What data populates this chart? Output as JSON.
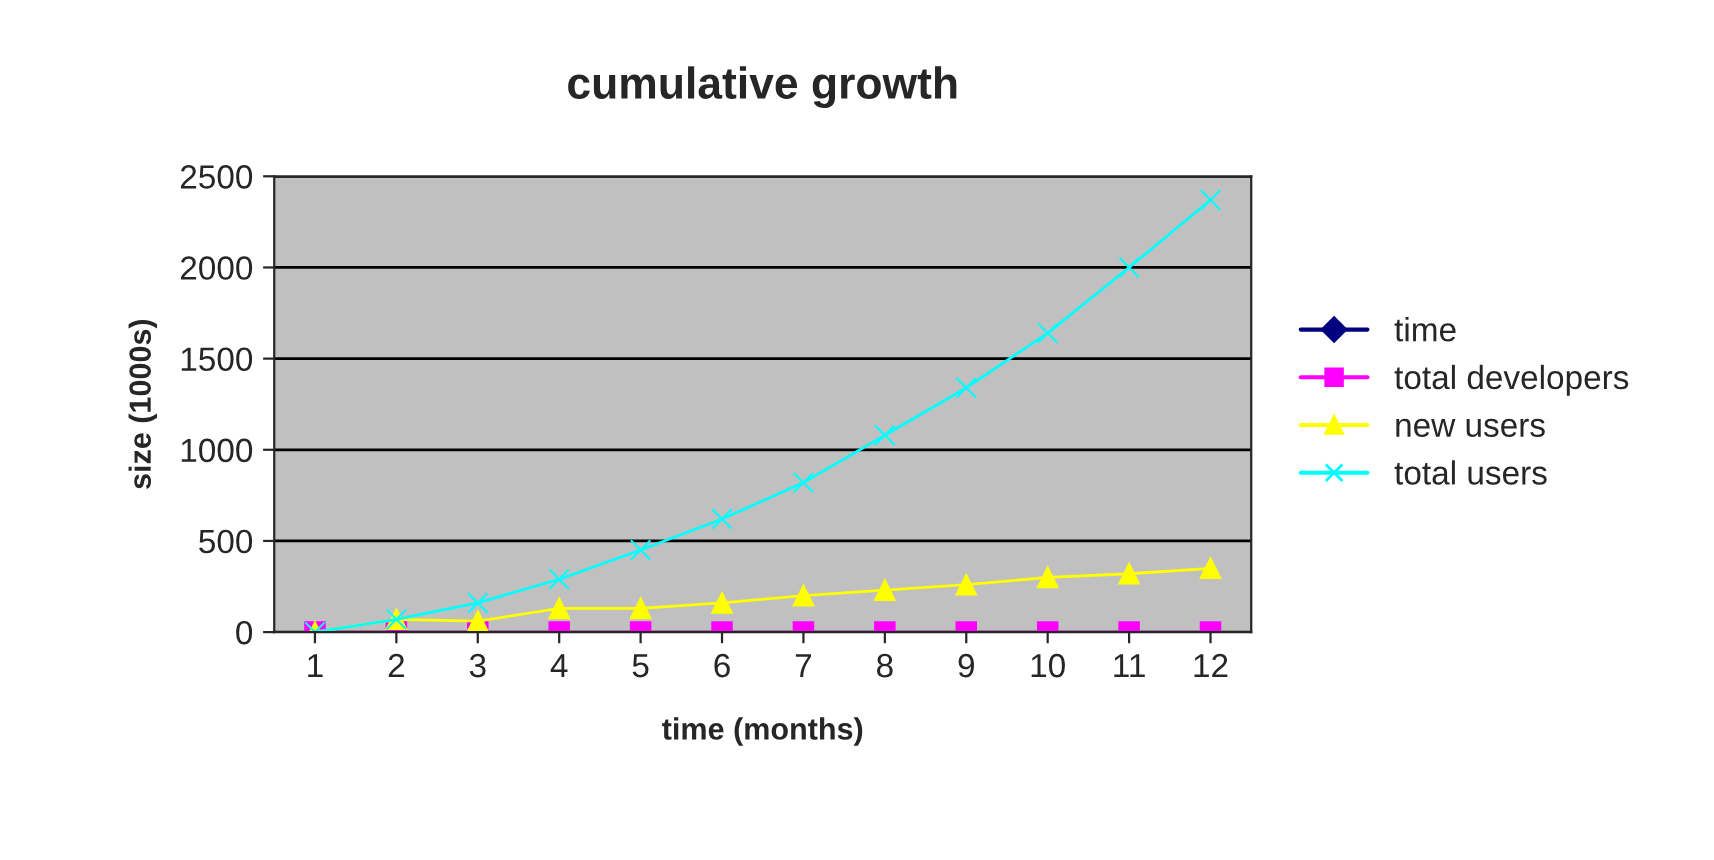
{
  "chart_data": {
    "type": "line",
    "title": "cumulative growth",
    "xlabel": "time (months)",
    "ylabel": "size (1000s)",
    "categories": [
      "1",
      "2",
      "3",
      "4",
      "5",
      "6",
      "7",
      "8",
      "9",
      "10",
      "11",
      "12"
    ],
    "series": [
      {
        "name": "time",
        "color": "#000080",
        "marker": "diamond",
        "values": [
          null,
          null,
          null,
          null,
          null,
          null,
          null,
          null,
          null,
          null,
          null,
          null
        ]
      },
      {
        "name": "total developers",
        "color": "#ff00ff",
        "marker": "square",
        "values": [
          0,
          0,
          0,
          0,
          0,
          0,
          0,
          0,
          0,
          0,
          0,
          0
        ]
      },
      {
        "name": "new users",
        "color": "#ffff00",
        "marker": "triangle",
        "values": [
          0,
          70,
          60,
          130,
          130,
          160,
          200,
          230,
          260,
          300,
          320,
          350
        ]
      },
      {
        "name": "total users",
        "color": "#00ffff",
        "marker": "cross",
        "values": [
          0,
          70,
          160,
          290,
          450,
          620,
          820,
          1080,
          1340,
          1640,
          2000,
          2370
        ]
      }
    ],
    "ylim": [
      0,
      2500
    ],
    "yticks": [
      0,
      500,
      1000,
      1500,
      2000,
      2500
    ],
    "grid": "y",
    "legend": "right"
  }
}
